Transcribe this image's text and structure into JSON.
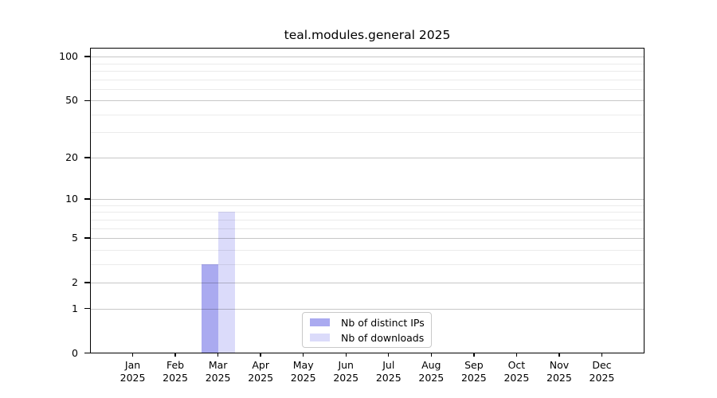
{
  "title": "teal.modules.general 2025",
  "chart_data": {
    "type": "bar",
    "title": "teal.modules.general 2025",
    "categories": [
      "Jan 2025",
      "Feb 2025",
      "Mar 2025",
      "Apr 2025",
      "May 2025",
      "Jun 2025",
      "Jul 2025",
      "Aug 2025",
      "Sep 2025",
      "Oct 2025",
      "Nov 2025",
      "Dec 2025"
    ],
    "series": [
      {
        "name": "Nb of distinct IPs",
        "color": "#aaaaf0",
        "values": [
          0,
          0,
          3,
          0,
          0,
          0,
          0,
          0,
          0,
          0,
          0,
          0
        ]
      },
      {
        "name": "Nb of downloads",
        "color": "#dbdbfa",
        "values": [
          0,
          0,
          8,
          0,
          0,
          0,
          0,
          0,
          0,
          0,
          0,
          0
        ]
      }
    ],
    "yscale": "log1p",
    "ylim": [
      0,
      115
    ],
    "yticks": [
      0,
      1,
      2,
      5,
      10,
      20,
      50,
      100
    ],
    "yticks_minor": [
      3,
      4,
      6,
      7,
      8,
      9,
      30,
      40,
      60,
      70,
      80,
      90
    ],
    "xlabel": "",
    "ylabel": "",
    "grid": "horizontal",
    "legend_position": "lower center"
  },
  "legend": {
    "items": [
      {
        "label": "Nb of distinct IPs",
        "color": "#aaaaf0"
      },
      {
        "label": "Nb of downloads",
        "color": "#dbdbfa"
      }
    ]
  },
  "colors": {
    "background": "#ffffff",
    "axis": "#000000",
    "major_grid": "#c7c7c7",
    "minor_grid": "#ebebeb",
    "distinct_ips_bar": "#aaaaf0",
    "downloads_bar": "#dbdbfa"
  }
}
